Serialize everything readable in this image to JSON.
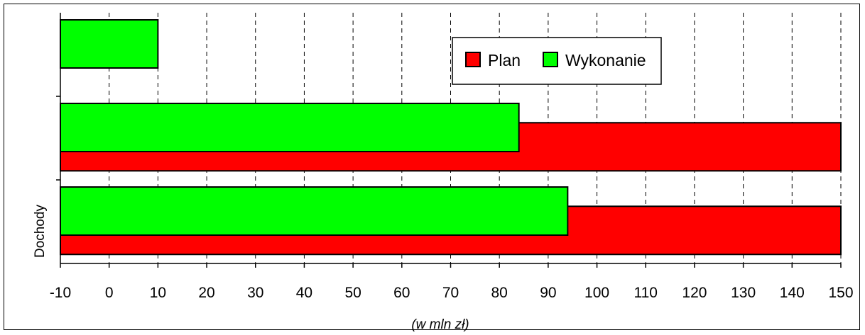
{
  "chart_data": {
    "type": "bar",
    "orientation": "horizontal",
    "xlabel": "(w mln zł)",
    "ylabel": "",
    "xlim": [
      -10,
      150
    ],
    "xticks": [
      -10,
      0,
      10,
      20,
      30,
      40,
      50,
      60,
      70,
      80,
      90,
      100,
      110,
      120,
      130,
      140,
      150
    ],
    "grid": "vertical dashed",
    "legend_position": "top-right",
    "categories": [
      "Dochody",
      "",
      ""
    ],
    "series": [
      {
        "name": "Plan",
        "color": "#ff0000",
        "values": [
          150,
          150,
          null
        ]
      },
      {
        "name": "Wykonanie",
        "color": "#00ff00",
        "values": [
          94,
          84,
          10
        ]
      }
    ]
  }
}
